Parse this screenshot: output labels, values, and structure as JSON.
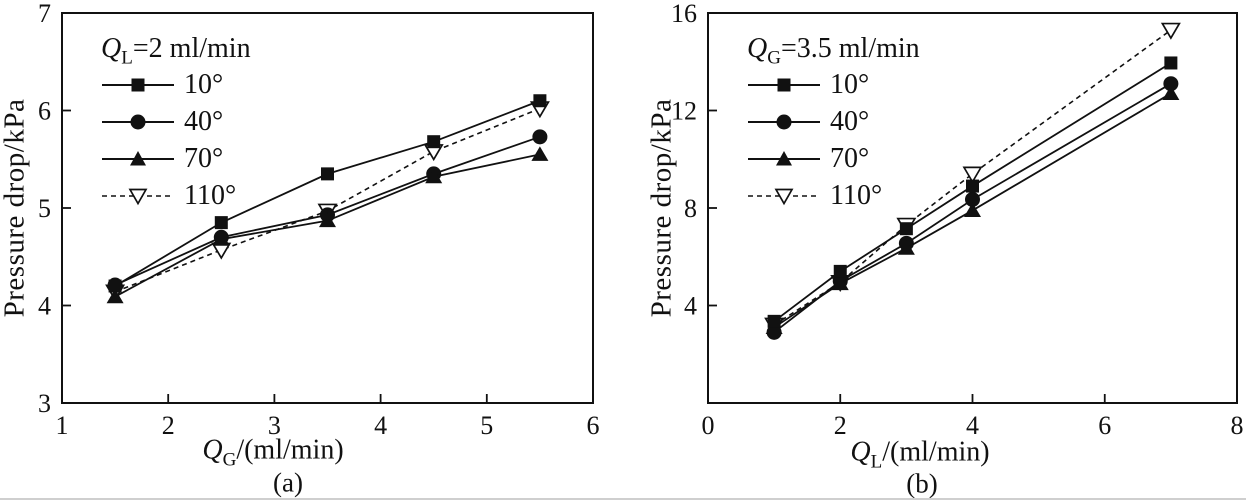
{
  "figure": {
    "background": "#ffffff",
    "ink": "#111111",
    "ylabel": "Pressure drop/kPa"
  },
  "chart_data": [
    {
      "type": "line",
      "panel": "a",
      "caption": "(a)",
      "title": "",
      "xlabel": {
        "var": "Q",
        "sub": "G",
        "rest": "/(ml/min)"
      },
      "ylabel": "Pressure drop/kPa",
      "xlim": [
        1,
        6
      ],
      "ylim": [
        3,
        7
      ],
      "xticks": [
        1,
        2,
        3,
        4,
        5,
        6
      ],
      "yticks": [
        3,
        4,
        5,
        6,
        7
      ],
      "grid": false,
      "legend": {
        "position": "top-left-inside",
        "title": {
          "var": "Q",
          "sub": "L",
          "rest": "=2 ml/min"
        },
        "entries": [
          "10°",
          "40°",
          "70°",
          "110°"
        ]
      },
      "x": [
        1.5,
        2.5,
        3.5,
        4.5,
        5.5
      ],
      "series": [
        {
          "name": "10°",
          "marker": "filled-square",
          "line": "solid",
          "values": [
            4.2,
            4.85,
            5.35,
            5.68,
            6.1
          ]
        },
        {
          "name": "40°",
          "marker": "filled-circle",
          "line": "solid",
          "values": [
            4.21,
            4.7,
            4.93,
            5.35,
            5.73
          ]
        },
        {
          "name": "70°",
          "marker": "filled-triangle-up",
          "line": "solid",
          "values": [
            4.09,
            4.68,
            4.87,
            5.32,
            5.55
          ]
        },
        {
          "name": "110°",
          "marker": "open-triangle-down",
          "line": "dashed",
          "values": [
            4.14,
            4.57,
            4.97,
            5.58,
            6.02
          ]
        }
      ]
    },
    {
      "type": "line",
      "panel": "b",
      "caption": "(b)",
      "title": "",
      "xlabel": {
        "var": "Q",
        "sub": "L",
        "rest": "/(ml/min)"
      },
      "ylabel": "Pressure drop/kPa",
      "xlim": [
        0,
        8
      ],
      "ylim": [
        0,
        16
      ],
      "xticks": [
        0,
        2,
        4,
        6,
        8
      ],
      "yticks": [
        4,
        8,
        12,
        16
      ],
      "grid": false,
      "legend": {
        "position": "top-left-inside",
        "title": {
          "var": "Q",
          "sub": "G",
          "rest": "=3.5 ml/min"
        },
        "entries": [
          "10°",
          "40°",
          "70°",
          "110°"
        ]
      },
      "x": [
        1,
        2,
        3,
        4,
        7
      ],
      "series": [
        {
          "name": "10°",
          "marker": "filled-square",
          "line": "solid",
          "values": [
            3.35,
            5.4,
            7.15,
            8.9,
            13.95
          ]
        },
        {
          "name": "40°",
          "marker": "filled-circle",
          "line": "solid",
          "values": [
            2.9,
            5.0,
            6.55,
            8.35,
            13.1
          ]
        },
        {
          "name": "70°",
          "marker": "filled-triangle-up",
          "line": "solid",
          "values": [
            3.1,
            4.9,
            6.35,
            7.9,
            12.7
          ]
        },
        {
          "name": "110°",
          "marker": "open-triangle-down",
          "line": "dashed",
          "values": [
            3.2,
            4.95,
            7.3,
            9.4,
            15.3
          ]
        }
      ]
    }
  ]
}
